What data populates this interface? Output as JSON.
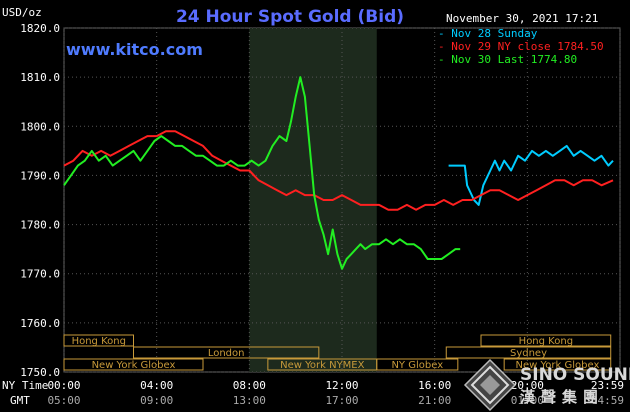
{
  "header": {
    "title": "24 Hour Spot Gold (Bid)",
    "unit": "USD/oz",
    "timestamp": "November 30, 2021 17:21",
    "url": "www.kitco.com"
  },
  "legend": [
    {
      "text": "Nov 28 Sunday",
      "color": "#00ccff"
    },
    {
      "text": "Nov 29 NY close 1784.50",
      "color": "#ff2020"
    },
    {
      "text": "Nov 30 Last 1774.80",
      "color": "#22ee22"
    }
  ],
  "sessions": [
    {
      "label": "Hong Kong",
      "start": -0.5,
      "end": 3.0,
      "row": 0
    },
    {
      "label": "London",
      "start": 3.0,
      "end": 11.0,
      "row": 1
    },
    {
      "label": "New York Globex",
      "start": -0.5,
      "end": 6.0,
      "row": 2
    },
    {
      "label": "New York NYMEX",
      "start": 8.8,
      "end": 13.5,
      "row": 2
    },
    {
      "label": "NY Globex",
      "start": 13.5,
      "end": 17.0,
      "row": 2
    },
    {
      "label": "Hong Kong",
      "start": 18.0,
      "end": 23.6,
      "row": 0
    },
    {
      "label": "Sydney",
      "start": 16.5,
      "end": 23.6,
      "row": 1
    },
    {
      "label": "New York Globex",
      "start": 19.0,
      "end": 23.6,
      "row": 2
    }
  ],
  "time_axis": {
    "ny_label": "NY Time",
    "gmt_label": "GMT",
    "ny_ticks": [
      "00:00",
      "04:00",
      "08:00",
      "12:00",
      "16:00",
      "20:00",
      "23:59"
    ],
    "gmt_ticks": [
      "05:00",
      "09:00",
      "13:00",
      "17:00",
      "21:00",
      "01:00",
      "04:59"
    ]
  },
  "watermark": {
    "text_en": "SINO SOUND",
    "text_cn": "漢聲集團",
    "icon": "diamond-logo-icon"
  },
  "chart_data": {
    "type": "line",
    "title": "24 Hour Spot Gold (Bid)",
    "ylabel": "USD/oz",
    "xlabel": "NY Time",
    "xlim": [
      0,
      24
    ],
    "ylim": [
      1750,
      1820
    ],
    "yticks": [
      1750,
      1760,
      1770,
      1780,
      1790,
      1800,
      1810,
      1820
    ],
    "ytick_labels": [
      "1750.0",
      "1760.0",
      "1770.0",
      "1780.0",
      "1790.0",
      "1800.0",
      "1810.0",
      "1820.0"
    ],
    "highlight_band": [
      8.0,
      13.5
    ],
    "grid": true,
    "series": [
      {
        "name": "Nov 28 Sunday",
        "color": "#00ccff",
        "points": [
          [
            16.6,
            1792
          ],
          [
            17.3,
            1792
          ],
          [
            17.4,
            1788
          ],
          [
            17.7,
            1785
          ],
          [
            17.9,
            1784
          ],
          [
            18.1,
            1788
          ],
          [
            18.4,
            1791
          ],
          [
            18.6,
            1793
          ],
          [
            18.8,
            1791
          ],
          [
            19.0,
            1793
          ],
          [
            19.3,
            1791
          ],
          [
            19.6,
            1794
          ],
          [
            19.9,
            1793
          ],
          [
            20.2,
            1795
          ],
          [
            20.5,
            1794
          ],
          [
            20.8,
            1795
          ],
          [
            21.1,
            1794
          ],
          [
            21.4,
            1795
          ],
          [
            21.7,
            1796
          ],
          [
            22.0,
            1794
          ],
          [
            22.3,
            1795
          ],
          [
            22.6,
            1794
          ],
          [
            22.9,
            1793
          ],
          [
            23.2,
            1794
          ],
          [
            23.5,
            1792
          ],
          [
            23.7,
            1793
          ]
        ]
      },
      {
        "name": "Nov 29 NY close 1784.50",
        "color": "#ff2020",
        "points": [
          [
            0,
            1792
          ],
          [
            0.4,
            1793
          ],
          [
            0.8,
            1795
          ],
          [
            1.2,
            1794
          ],
          [
            1.6,
            1795
          ],
          [
            2.0,
            1794
          ],
          [
            2.4,
            1795
          ],
          [
            2.8,
            1796
          ],
          [
            3.2,
            1797
          ],
          [
            3.6,
            1798
          ],
          [
            4.0,
            1798
          ],
          [
            4.4,
            1799
          ],
          [
            4.8,
            1799
          ],
          [
            5.2,
            1798
          ],
          [
            5.6,
            1797
          ],
          [
            6.0,
            1796
          ],
          [
            6.4,
            1794
          ],
          [
            6.8,
            1793
          ],
          [
            7.2,
            1792
          ],
          [
            7.6,
            1791
          ],
          [
            8.0,
            1791
          ],
          [
            8.4,
            1789
          ],
          [
            8.8,
            1788
          ],
          [
            9.2,
            1787
          ],
          [
            9.6,
            1786
          ],
          [
            10.0,
            1787
          ],
          [
            10.4,
            1786
          ],
          [
            10.8,
            1786
          ],
          [
            11.2,
            1785
          ],
          [
            11.6,
            1785
          ],
          [
            12.0,
            1786
          ],
          [
            12.4,
            1785
          ],
          [
            12.8,
            1784
          ],
          [
            13.2,
            1784
          ],
          [
            13.6,
            1784
          ],
          [
            14.0,
            1783
          ],
          [
            14.4,
            1783
          ],
          [
            14.8,
            1784
          ],
          [
            15.2,
            1783
          ],
          [
            15.6,
            1784
          ],
          [
            16.0,
            1784
          ],
          [
            16.4,
            1785
          ],
          [
            16.8,
            1784
          ],
          [
            17.2,
            1785
          ],
          [
            17.6,
            1785
          ],
          [
            18.0,
            1786
          ],
          [
            18.4,
            1787
          ],
          [
            18.8,
            1787
          ],
          [
            19.2,
            1786
          ],
          [
            19.6,
            1785
          ],
          [
            20.0,
            1786
          ],
          [
            20.4,
            1787
          ],
          [
            20.8,
            1788
          ],
          [
            21.2,
            1789
          ],
          [
            21.6,
            1789
          ],
          [
            22.0,
            1788
          ],
          [
            22.4,
            1789
          ],
          [
            22.8,
            1789
          ],
          [
            23.2,
            1788
          ],
          [
            23.7,
            1789
          ]
        ]
      },
      {
        "name": "Nov 30 Last 1774.80",
        "color": "#22ee22",
        "points": [
          [
            0,
            1788
          ],
          [
            0.3,
            1790
          ],
          [
            0.6,
            1792
          ],
          [
            0.9,
            1793
          ],
          [
            1.2,
            1795
          ],
          [
            1.5,
            1793
          ],
          [
            1.8,
            1794
          ],
          [
            2.1,
            1792
          ],
          [
            2.4,
            1793
          ],
          [
            2.7,
            1794
          ],
          [
            3.0,
            1795
          ],
          [
            3.3,
            1793
          ],
          [
            3.6,
            1795
          ],
          [
            3.9,
            1797
          ],
          [
            4.2,
            1798
          ],
          [
            4.5,
            1797
          ],
          [
            4.8,
            1796
          ],
          [
            5.1,
            1796
          ],
          [
            5.4,
            1795
          ],
          [
            5.7,
            1794
          ],
          [
            6.0,
            1794
          ],
          [
            6.3,
            1793
          ],
          [
            6.6,
            1792
          ],
          [
            6.9,
            1792
          ],
          [
            7.2,
            1793
          ],
          [
            7.5,
            1792
          ],
          [
            7.8,
            1792
          ],
          [
            8.1,
            1793
          ],
          [
            8.4,
            1792
          ],
          [
            8.7,
            1793
          ],
          [
            9.0,
            1796
          ],
          [
            9.3,
            1798
          ],
          [
            9.6,
            1797
          ],
          [
            9.8,
            1801
          ],
          [
            10.0,
            1806
          ],
          [
            10.2,
            1810
          ],
          [
            10.4,
            1806
          ],
          [
            10.6,
            1796
          ],
          [
            10.8,
            1786
          ],
          [
            11.0,
            1781
          ],
          [
            11.2,
            1778
          ],
          [
            11.4,
            1774
          ],
          [
            11.6,
            1779
          ],
          [
            11.8,
            1774
          ],
          [
            12.0,
            1771
          ],
          [
            12.2,
            1773
          ],
          [
            12.4,
            1774
          ],
          [
            12.6,
            1775
          ],
          [
            12.8,
            1776
          ],
          [
            13.0,
            1775
          ],
          [
            13.3,
            1776
          ],
          [
            13.6,
            1776
          ],
          [
            13.9,
            1777
          ],
          [
            14.2,
            1776
          ],
          [
            14.5,
            1777
          ],
          [
            14.8,
            1776
          ],
          [
            15.1,
            1776
          ],
          [
            15.4,
            1775
          ],
          [
            15.7,
            1773
          ],
          [
            16.0,
            1773
          ],
          [
            16.3,
            1773
          ],
          [
            16.6,
            1774
          ],
          [
            16.9,
            1775
          ],
          [
            17.1,
            1775
          ]
        ]
      }
    ]
  }
}
